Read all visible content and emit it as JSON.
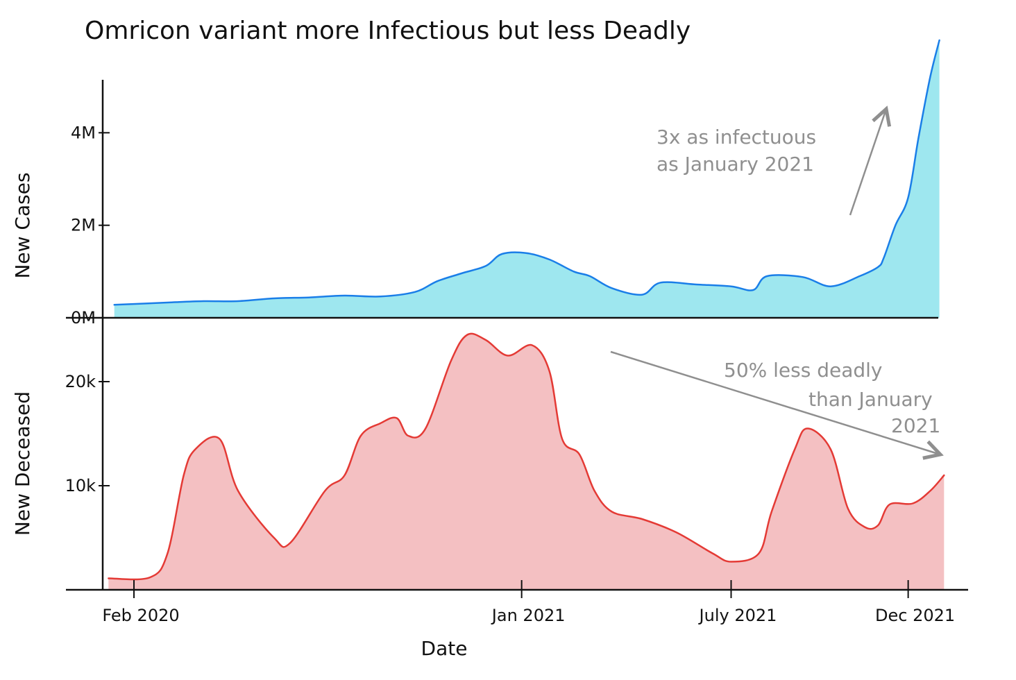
{
  "chart_data": [
    {
      "type": "area",
      "title": "Omricon variant more Infectious but less Deadly",
      "xlabel": "Date",
      "ylabel": "New Cases",
      "yticks": [
        {
          "value": 0,
          "label": "0M"
        },
        {
          "value": 2000000,
          "label": "2M"
        },
        {
          "value": 4000000,
          "label": "4M"
        }
      ],
      "ylim": [
        0,
        6000000
      ],
      "xlim": [
        "2020-01-05",
        "2022-01-20"
      ],
      "series": [
        {
          "fill": "#9ee7ef",
          "line": "#1a7ee8",
          "points": [
            [
              "2020-01-15",
              280000
            ],
            [
              "2020-03-01",
              330000
            ],
            [
              "2020-04-01",
              360000
            ],
            [
              "2020-05-01",
              360000
            ],
            [
              "2020-06-01",
              420000
            ],
            [
              "2020-07-01",
              440000
            ],
            [
              "2020-08-01",
              480000
            ],
            [
              "2020-09-01",
              460000
            ],
            [
              "2020-10-01",
              560000
            ],
            [
              "2020-10-20",
              790000
            ],
            [
              "2020-11-10",
              960000
            ],
            [
              "2020-12-01",
              1120000
            ],
            [
              "2020-12-15",
              1380000
            ],
            [
              "2021-01-05",
              1400000
            ],
            [
              "2021-01-25",
              1260000
            ],
            [
              "2021-02-15",
              1000000
            ],
            [
              "2021-03-01",
              900000
            ],
            [
              "2021-03-20",
              640000
            ],
            [
              "2021-04-15",
              500000
            ],
            [
              "2021-05-01",
              760000
            ],
            [
              "2021-06-01",
              720000
            ],
            [
              "2021-07-01",
              680000
            ],
            [
              "2021-07-20",
              600000
            ],
            [
              "2021-08-01",
              900000
            ],
            [
              "2021-09-01",
              880000
            ],
            [
              "2021-09-25",
              680000
            ],
            [
              "2021-10-20",
              900000
            ],
            [
              "2021-11-05",
              1100000
            ],
            [
              "2021-11-10",
              1300000
            ],
            [
              "2021-11-20",
              2000000
            ],
            [
              "2021-12-01",
              2600000
            ],
            [
              "2021-12-10",
              3900000
            ],
            [
              "2021-12-20",
              5200000
            ],
            [
              "2021-12-28",
              6000000
            ]
          ]
        }
      ]
    },
    {
      "type": "area",
      "xlabel": "Date",
      "ylabel": "New Deceased",
      "yticks": [
        {
          "value": 10000,
          "label": "10k"
        },
        {
          "value": 20000,
          "label": "20k"
        }
      ],
      "ylim": [
        0,
        25000
      ],
      "xlim": [
        "2020-01-05",
        "2022-01-20"
      ],
      "xticks": [
        {
          "date": "2020-02-01",
          "label": "Feb 2020"
        },
        {
          "date": "2021-01-01",
          "label": "Jan 2021"
        },
        {
          "date": "2021-07-01",
          "label": "July 2021"
        },
        {
          "date": "2021-12-01",
          "label": "Dec 2021"
        }
      ],
      "series": [
        {
          "fill": "#f4c0c2",
          "line": "#e43a35",
          "points": [
            [
              "2020-01-10",
              1100
            ],
            [
              "2020-02-15",
              1200
            ],
            [
              "2020-03-01",
              3500
            ],
            [
              "2020-03-15",
              11000
            ],
            [
              "2020-03-25",
              13500
            ],
            [
              "2020-04-15",
              14500
            ],
            [
              "2020-05-01",
              9500
            ],
            [
              "2020-06-01",
              5000
            ],
            [
              "2020-06-15",
              4500
            ],
            [
              "2020-07-15",
              9500
            ],
            [
              "2020-08-01",
              11000
            ],
            [
              "2020-08-15",
              14800
            ],
            [
              "2020-09-01",
              16000
            ],
            [
              "2020-09-15",
              16500
            ],
            [
              "2020-09-25",
              14800
            ],
            [
              "2020-10-10",
              15500
            ],
            [
              "2020-11-01",
              22000
            ],
            [
              "2020-11-15",
              24500
            ],
            [
              "2020-12-01",
              24000
            ],
            [
              "2020-12-20",
              22500
            ],
            [
              "2021-01-10",
              23500
            ],
            [
              "2021-01-25",
              21000
            ],
            [
              "2021-02-05",
              14500
            ],
            [
              "2021-02-20",
              13000
            ],
            [
              "2021-03-05",
              9500
            ],
            [
              "2021-03-20",
              7500
            ],
            [
              "2021-04-15",
              6800
            ],
            [
              "2021-05-15",
              5500
            ],
            [
              "2021-06-15",
              3500
            ],
            [
              "2021-07-01",
              2700
            ],
            [
              "2021-07-25",
              3500
            ],
            [
              "2021-08-05",
              7500
            ],
            [
              "2021-08-25",
              13500
            ],
            [
              "2021-09-05",
              15500
            ],
            [
              "2021-09-25",
              13500
            ],
            [
              "2021-10-10",
              7800
            ],
            [
              "2021-10-25",
              6000
            ],
            [
              "2021-11-05",
              6200
            ],
            [
              "2021-11-15",
              8200
            ],
            [
              "2021-12-05",
              8300
            ],
            [
              "2021-12-20",
              9500
            ],
            [
              "2022-01-01",
              11000
            ]
          ]
        }
      ]
    }
  ],
  "annotations": {
    "cases": [
      "3x as infectuous",
      "as January 2021"
    ],
    "deaths": [
      "50% less deadly",
      "than January",
      "2021"
    ]
  }
}
